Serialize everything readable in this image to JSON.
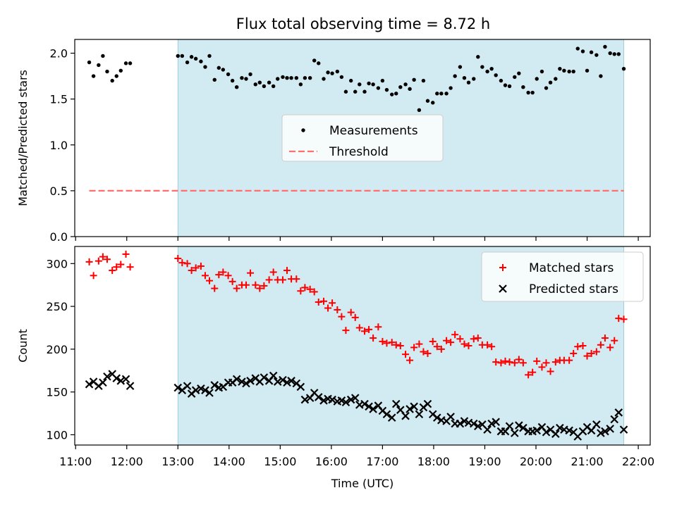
{
  "title": "Flux total observing time = 8.72 h",
  "chart_data": [
    {
      "type": "scatter",
      "ylabel": "Matched/Predicted stars",
      "ylim": [
        0,
        2.15
      ],
      "xlim": [
        "10:59",
        "22:14"
      ],
      "yticks": [
        0.0,
        0.5,
        1.0,
        1.5,
        2.0
      ],
      "ytick_labels": [
        "0.0",
        "0.5",
        "1.0",
        "1.5",
        "2.0"
      ],
      "shaded_region": {
        "x": [
          "13:00",
          "21:43"
        ],
        "color": "#add8e6"
      },
      "legend": {
        "position": "center",
        "entries": [
          "Measurements",
          "Threshold"
        ]
      },
      "series": [
        {
          "name": "Measurements",
          "marker": "dot",
          "color": "#000000",
          "x": [
            "11:16",
            "11:21",
            "11:27",
            "11:32",
            "11:37",
            "11:43",
            "11:48",
            "11:53",
            "11:59",
            "12:04",
            "13:00",
            "13:05",
            "13:11",
            "13:16",
            "13:21",
            "13:27",
            "13:32",
            "13:37",
            "13:43",
            "13:48",
            "13:53",
            "13:59",
            "14:04",
            "14:09",
            "14:15",
            "14:20",
            "14:25",
            "14:31",
            "14:36",
            "14:41",
            "14:47",
            "14:52",
            "14:57",
            "15:03",
            "15:08",
            "15:13",
            "15:19",
            "15:24",
            "15:29",
            "15:35",
            "15:40",
            "15:45",
            "15:51",
            "15:56",
            "16:01",
            "16:07",
            "16:12",
            "16:17",
            "16:23",
            "16:28",
            "16:33",
            "16:39",
            "16:44",
            "16:49",
            "16:55",
            "17:00",
            "17:05",
            "17:11",
            "17:16",
            "17:21",
            "17:27",
            "17:32",
            "17:37",
            "17:43",
            "17:48",
            "17:53",
            "17:59",
            "18:04",
            "18:09",
            "18:15",
            "18:20",
            "18:25",
            "18:31",
            "18:36",
            "18:41",
            "18:47",
            "18:52",
            "18:57",
            "19:03",
            "19:08",
            "19:13",
            "19:19",
            "19:24",
            "19:29",
            "19:35",
            "19:40",
            "19:45",
            "19:51",
            "19:56",
            "20:01",
            "20:07",
            "20:12",
            "20:17",
            "20:23",
            "20:28",
            "20:33",
            "20:39",
            "20:44",
            "20:49",
            "20:55",
            "21:00",
            "21:05",
            "21:11",
            "21:16",
            "21:21",
            "21:27",
            "21:32",
            "21:37",
            "21:43"
          ],
          "y": [
            1.9,
            1.75,
            1.87,
            1.97,
            1.8,
            1.7,
            1.75,
            1.81,
            1.89,
            1.89,
            1.97,
            1.97,
            1.9,
            1.96,
            1.94,
            1.91,
            1.85,
            1.97,
            1.71,
            1.84,
            1.82,
            1.77,
            1.7,
            1.63,
            1.73,
            1.72,
            1.77,
            1.66,
            1.68,
            1.64,
            1.68,
            1.64,
            1.72,
            1.74,
            1.73,
            1.73,
            1.73,
            1.66,
            1.73,
            1.73,
            1.92,
            1.89,
            1.72,
            1.79,
            1.78,
            1.8,
            1.74,
            1.58,
            1.7,
            1.58,
            1.66,
            1.58,
            1.67,
            1.66,
            1.62,
            1.7,
            1.6,
            1.55,
            1.56,
            1.63,
            1.66,
            1.61,
            1.71,
            1.38,
            1.7,
            1.48,
            1.46,
            1.56,
            1.56,
            1.56,
            1.62,
            1.75,
            1.85,
            1.73,
            1.68,
            1.72,
            1.96,
            1.85,
            1.8,
            1.83,
            1.76,
            1.7,
            1.65,
            1.64,
            1.74,
            1.78,
            1.63,
            1.57,
            1.57,
            1.72,
            1.8,
            1.62,
            1.68,
            1.72,
            1.83,
            1.81,
            1.8,
            1.8,
            2.05,
            2.02,
            1.81,
            2.01,
            1.98,
            1.75,
            2.07,
            2.0,
            1.99,
            1.99,
            1.83
          ]
        },
        {
          "name": "Threshold",
          "style": "dashed",
          "color": "#ff6f6f",
          "x": [
            "11:16",
            "21:43"
          ],
          "y": [
            0.5,
            0.5
          ]
        }
      ]
    },
    {
      "type": "scatter",
      "xlabel": "Time (UTC)",
      "ylabel": "Count",
      "xlim": [
        "10:59",
        "22:14"
      ],
      "ylim": [
        88,
        320
      ],
      "xticks": [
        "11:00",
        "12:00",
        "13:00",
        "14:00",
        "15:00",
        "16:00",
        "17:00",
        "18:00",
        "19:00",
        "20:00",
        "21:00",
        "22:00"
      ],
      "yticks": [
        100,
        150,
        200,
        250,
        300
      ],
      "shaded_region": {
        "x": [
          "13:00",
          "21:43"
        ],
        "color": "#add8e6"
      },
      "legend": {
        "position": "top-right",
        "entries": [
          "Matched stars",
          "Predicted stars"
        ]
      },
      "series": [
        {
          "name": "Matched stars",
          "marker": "plus",
          "color": "#ff0000",
          "x": [
            "11:16",
            "11:21",
            "11:27",
            "11:32",
            "11:37",
            "11:43",
            "11:48",
            "11:53",
            "11:59",
            "12:04",
            "13:00",
            "13:05",
            "13:11",
            "13:16",
            "13:21",
            "13:27",
            "13:32",
            "13:37",
            "13:43",
            "13:48",
            "13:53",
            "13:59",
            "14:04",
            "14:09",
            "14:15",
            "14:20",
            "14:25",
            "14:31",
            "14:36",
            "14:41",
            "14:47",
            "14:52",
            "14:57",
            "15:03",
            "15:08",
            "15:13",
            "15:19",
            "15:24",
            "15:29",
            "15:35",
            "15:40",
            "15:45",
            "15:51",
            "15:56",
            "16:01",
            "16:07",
            "16:12",
            "16:17",
            "16:23",
            "16:28",
            "16:33",
            "16:39",
            "16:44",
            "16:49",
            "16:55",
            "17:00",
            "17:05",
            "17:11",
            "17:16",
            "17:21",
            "17:27",
            "17:32",
            "17:37",
            "17:43",
            "17:48",
            "17:53",
            "17:59",
            "18:04",
            "18:09",
            "18:15",
            "18:20",
            "18:25",
            "18:31",
            "18:36",
            "18:41",
            "18:47",
            "18:52",
            "18:57",
            "19:03",
            "19:08",
            "19:13",
            "19:19",
            "19:24",
            "19:29",
            "19:35",
            "19:40",
            "19:45",
            "19:51",
            "19:56",
            "20:01",
            "20:07",
            "20:12",
            "20:17",
            "20:23",
            "20:28",
            "20:33",
            "20:39",
            "20:44",
            "20:49",
            "20:55",
            "21:00",
            "21:05",
            "21:11",
            "21:16",
            "21:21",
            "21:27",
            "21:32",
            "21:37",
            "21:43"
          ],
          "y": [
            302,
            286,
            303,
            308,
            305,
            292,
            296,
            299,
            311,
            296,
            306,
            301,
            300,
            292,
            295,
            297,
            286,
            280,
            271,
            287,
            290,
            286,
            279,
            271,
            275,
            275,
            289,
            275,
            271,
            274,
            281,
            290,
            281,
            281,
            292,
            282,
            282,
            268,
            272,
            270,
            267,
            255,
            256,
            248,
            254,
            246,
            238,
            222,
            243,
            237,
            225,
            221,
            223,
            213,
            226,
            209,
            207,
            208,
            205,
            204,
            194,
            187,
            202,
            206,
            197,
            195,
            209,
            203,
            200,
            210,
            208,
            217,
            212,
            206,
            204,
            212,
            213,
            205,
            205,
            203,
            185,
            184,
            186,
            185,
            184,
            188,
            184,
            170,
            173,
            186,
            179,
            184,
            174,
            185,
            187,
            187,
            187,
            195,
            203,
            204,
            192,
            195,
            197,
            205,
            213,
            202,
            210,
            236,
            235
          ]
        },
        {
          "name": "Predicted stars",
          "marker": "x",
          "color": "#000000",
          "x": [
            "11:16",
            "11:21",
            "11:27",
            "11:32",
            "11:37",
            "11:43",
            "11:48",
            "11:53",
            "11:59",
            "12:04",
            "13:00",
            "13:05",
            "13:11",
            "13:16",
            "13:21",
            "13:27",
            "13:32",
            "13:37",
            "13:43",
            "13:48",
            "13:53",
            "13:59",
            "14:04",
            "14:09",
            "14:15",
            "14:20",
            "14:25",
            "14:31",
            "14:36",
            "14:41",
            "14:47",
            "14:52",
            "14:57",
            "15:03",
            "15:08",
            "15:13",
            "15:19",
            "15:24",
            "15:29",
            "15:35",
            "15:40",
            "15:45",
            "15:51",
            "15:56",
            "16:01",
            "16:07",
            "16:12",
            "16:17",
            "16:23",
            "16:28",
            "16:33",
            "16:39",
            "16:44",
            "16:49",
            "16:55",
            "17:00",
            "17:05",
            "17:11",
            "17:16",
            "17:21",
            "17:27",
            "17:32",
            "17:37",
            "17:43",
            "17:48",
            "17:53",
            "17:59",
            "18:04",
            "18:09",
            "18:15",
            "18:20",
            "18:25",
            "18:31",
            "18:36",
            "18:41",
            "18:47",
            "18:52",
            "18:57",
            "19:03",
            "19:08",
            "19:13",
            "19:19",
            "19:24",
            "19:29",
            "19:35",
            "19:40",
            "19:45",
            "19:51",
            "19:56",
            "20:01",
            "20:07",
            "20:12",
            "20:17",
            "20:23",
            "20:28",
            "20:33",
            "20:39",
            "20:44",
            "20:49",
            "20:55",
            "21:00",
            "21:05",
            "21:11",
            "21:16",
            "21:21",
            "21:27",
            "21:32",
            "21:37",
            "21:43"
          ],
          "y": [
            159,
            162,
            157,
            161,
            168,
            171,
            166,
            163,
            165,
            157,
            155,
            152,
            157,
            148,
            152,
            154,
            152,
            149,
            158,
            155,
            156,
            161,
            161,
            165,
            162,
            160,
            163,
            166,
            162,
            167,
            163,
            169,
            162,
            164,
            161,
            163,
            160,
            156,
            141,
            143,
            149,
            144,
            140,
            142,
            141,
            139,
            140,
            138,
            141,
            143,
            135,
            136,
            133,
            130,
            134,
            128,
            124,
            120,
            136,
            129,
            122,
            130,
            133,
            124,
            132,
            136,
            124,
            120,
            117,
            116,
            121,
            113,
            113,
            116,
            114,
            113,
            110,
            112,
            106,
            113,
            115,
            104,
            104,
            110,
            102,
            111,
            108,
            104,
            104,
            105,
            109,
            103,
            106,
            101,
            108,
            106,
            105,
            103,
            98,
            104,
            109,
            105,
            112,
            102,
            104,
            107,
            118,
            126,
            106
          ]
        }
      ]
    }
  ]
}
